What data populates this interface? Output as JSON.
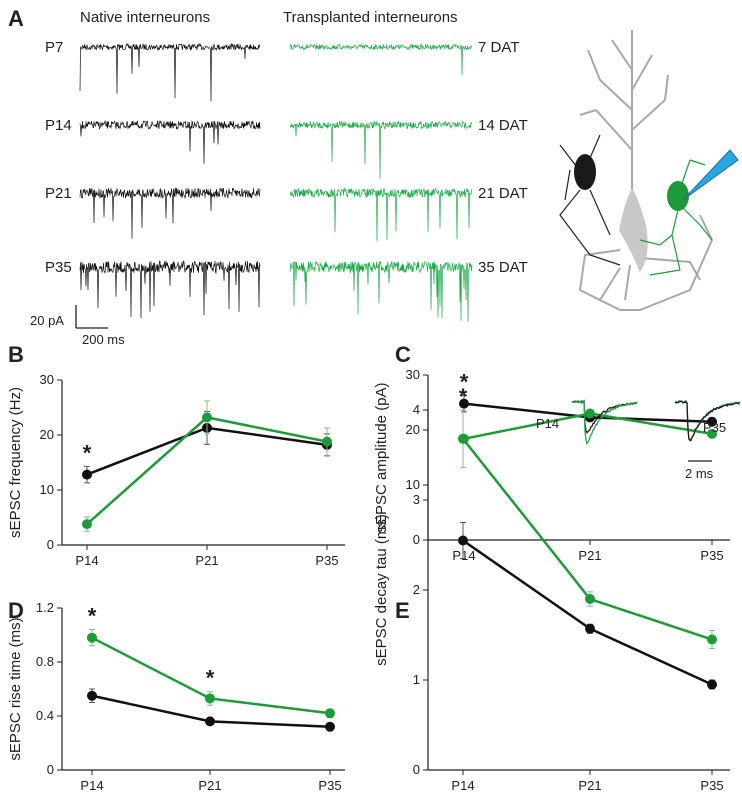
{
  "panel_a": {
    "panel": "A",
    "native_title": "Native interneurons",
    "transplanted_title": "Transplanted interneurons",
    "native_labels": [
      "P7",
      "P14",
      "P21",
      "P35"
    ],
    "transplanted_labels": [
      "7 DAT",
      "14 DAT",
      "21 DAT",
      "35 DAT"
    ],
    "scale_y_label": "20 pA",
    "scale_x_label": "200 ms"
  },
  "chart_data": [
    {
      "type": "line",
      "panel": "B",
      "y_label": "sEPSC frequency (Hz)",
      "categories": [
        "P14",
        "P21",
        "P35"
      ],
      "ylim": [
        0,
        30
      ],
      "yticks": [
        0,
        10,
        20,
        30
      ],
      "annotations": [
        "*"
      ],
      "series": [
        {
          "color": "#111111",
          "values": [
            12.8,
            21.3,
            18.2
          ],
          "errors": [
            1.5,
            3,
            2
          ]
        },
        {
          "color": "#1f9a3a",
          "values": [
            3.8,
            23.2,
            18.8
          ],
          "errors": [
            1.3,
            3,
            2.5
          ]
        }
      ]
    },
    {
      "type": "line",
      "panel": "C",
      "y_label": "sEPSC amplitude (pA)",
      "categories": [
        "P14",
        "P21",
        "P35"
      ],
      "ylim": [
        0,
        30
      ],
      "yticks": [
        0,
        10,
        20,
        30
      ],
      "annotations": [
        "*"
      ],
      "series": [
        {
          "color": "#111111",
          "values": [
            24.8,
            22.3,
            21.5
          ],
          "errors": [
            1.5,
            0.7,
            0.7
          ]
        },
        {
          "color": "#1f9a3a",
          "values": [
            18.4,
            23.0,
            19.3
          ],
          "errors": [
            0.6,
            0.6,
            0.6
          ]
        }
      ]
    },
    {
      "type": "line",
      "panel": "D",
      "y_label": "sEPSC rise time (ms)",
      "categories": [
        "P14",
        "P21",
        "P35"
      ],
      "ylim": [
        0,
        1.2
      ],
      "yticks": [
        0,
        0.4,
        0.8,
        1.2
      ],
      "annotations": [
        "*",
        "*"
      ],
      "series": [
        {
          "color": "#111111",
          "values": [
            0.55,
            0.36,
            0.32
          ],
          "errors": [
            0.05,
            0.02,
            0.02
          ]
        },
        {
          "color": "#1f9a3a",
          "values": [
            0.98,
            0.53,
            0.42
          ],
          "errors": [
            0.06,
            0.05,
            0.03
          ]
        }
      ]
    },
    {
      "type": "line",
      "panel": "E",
      "y_label": "sEPSC decay tau (ms)",
      "categories": [
        "P14",
        "P21",
        "P35"
      ],
      "ylim": [
        0,
        4
      ],
      "yticks": [
        0,
        1,
        2,
        3,
        4
      ],
      "annotations": [
        "*"
      ],
      "inset_labels": [
        "P14",
        "P35"
      ],
      "inset_scale_label": "2 ms",
      "series": [
        {
          "color": "#111111",
          "values": [
            2.55,
            1.57,
            0.95
          ],
          "errors": [
            0.2,
            0.05,
            0.05
          ]
        },
        {
          "color": "#1f9a3a",
          "values": [
            3.68,
            1.9,
            1.45
          ],
          "errors": [
            0.32,
            0.08,
            0.1
          ]
        }
      ]
    }
  ]
}
